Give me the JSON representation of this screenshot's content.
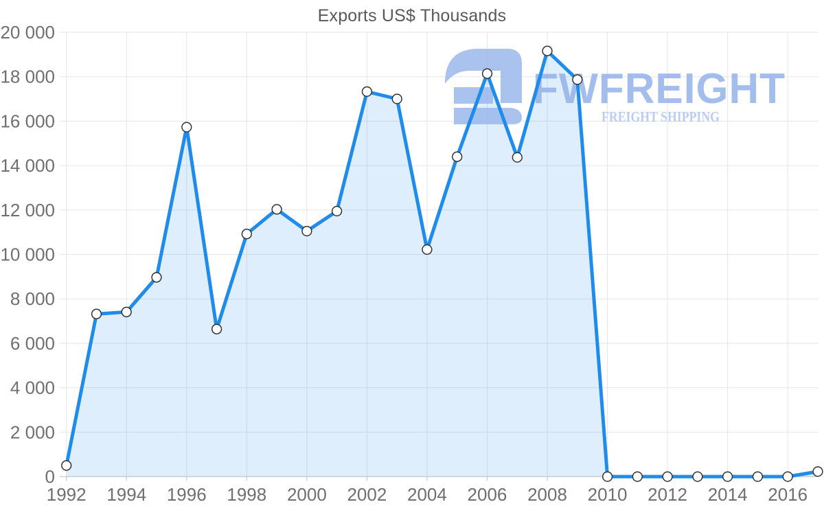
{
  "page": {
    "background": "#ffffff"
  },
  "chart_data": {
    "type": "area",
    "title": "Exports US$ Thousands",
    "series_name": "Exports",
    "x": [
      1992,
      1993,
      1994,
      1995,
      1996,
      1997,
      1998,
      1999,
      2000,
      2001,
      2002,
      2003,
      2004,
      2005,
      2006,
      2007,
      2008,
      2009,
      2010,
      2011,
      2012,
      2013,
      2014,
      2015,
      2016,
      2017
    ],
    "values": [
      500,
      7320,
      7410,
      8970,
      15730,
      6640,
      10920,
      12030,
      11050,
      11950,
      17330,
      17000,
      10220,
      14400,
      18140,
      14370,
      19160,
      17870,
      0,
      0,
      0,
      0,
      0,
      0,
      0,
      230
    ],
    "ylim": [
      0,
      20000
    ],
    "ytick_step": 2000,
    "xticks": [
      1992,
      1994,
      1996,
      1998,
      2000,
      2002,
      2004,
      2006,
      2008,
      2010,
      2012,
      2014,
      2016
    ],
    "grid": true,
    "legend_position": "none",
    "marker": "circle-white",
    "thousands_separator": " ",
    "colors": {
      "line": "#1f8ceb",
      "fill": "rgba(31,140,235,0.15)",
      "grid": "#e5e5e5",
      "axis": "#c9c9c9",
      "tick_label": "#6f6f6f",
      "title": "#595959",
      "marker_fill": "#ffffff",
      "marker_stroke": "#333333"
    }
  },
  "watermark": {
    "brand": "FWFREIGHT",
    "tagline": "FREIGHT SHIPPING",
    "icon": "fwfreight-logo-icon",
    "colors": {
      "icon": "#9bb8ec",
      "brand": "#94b2e9",
      "tagline": "#aec4f0"
    }
  }
}
